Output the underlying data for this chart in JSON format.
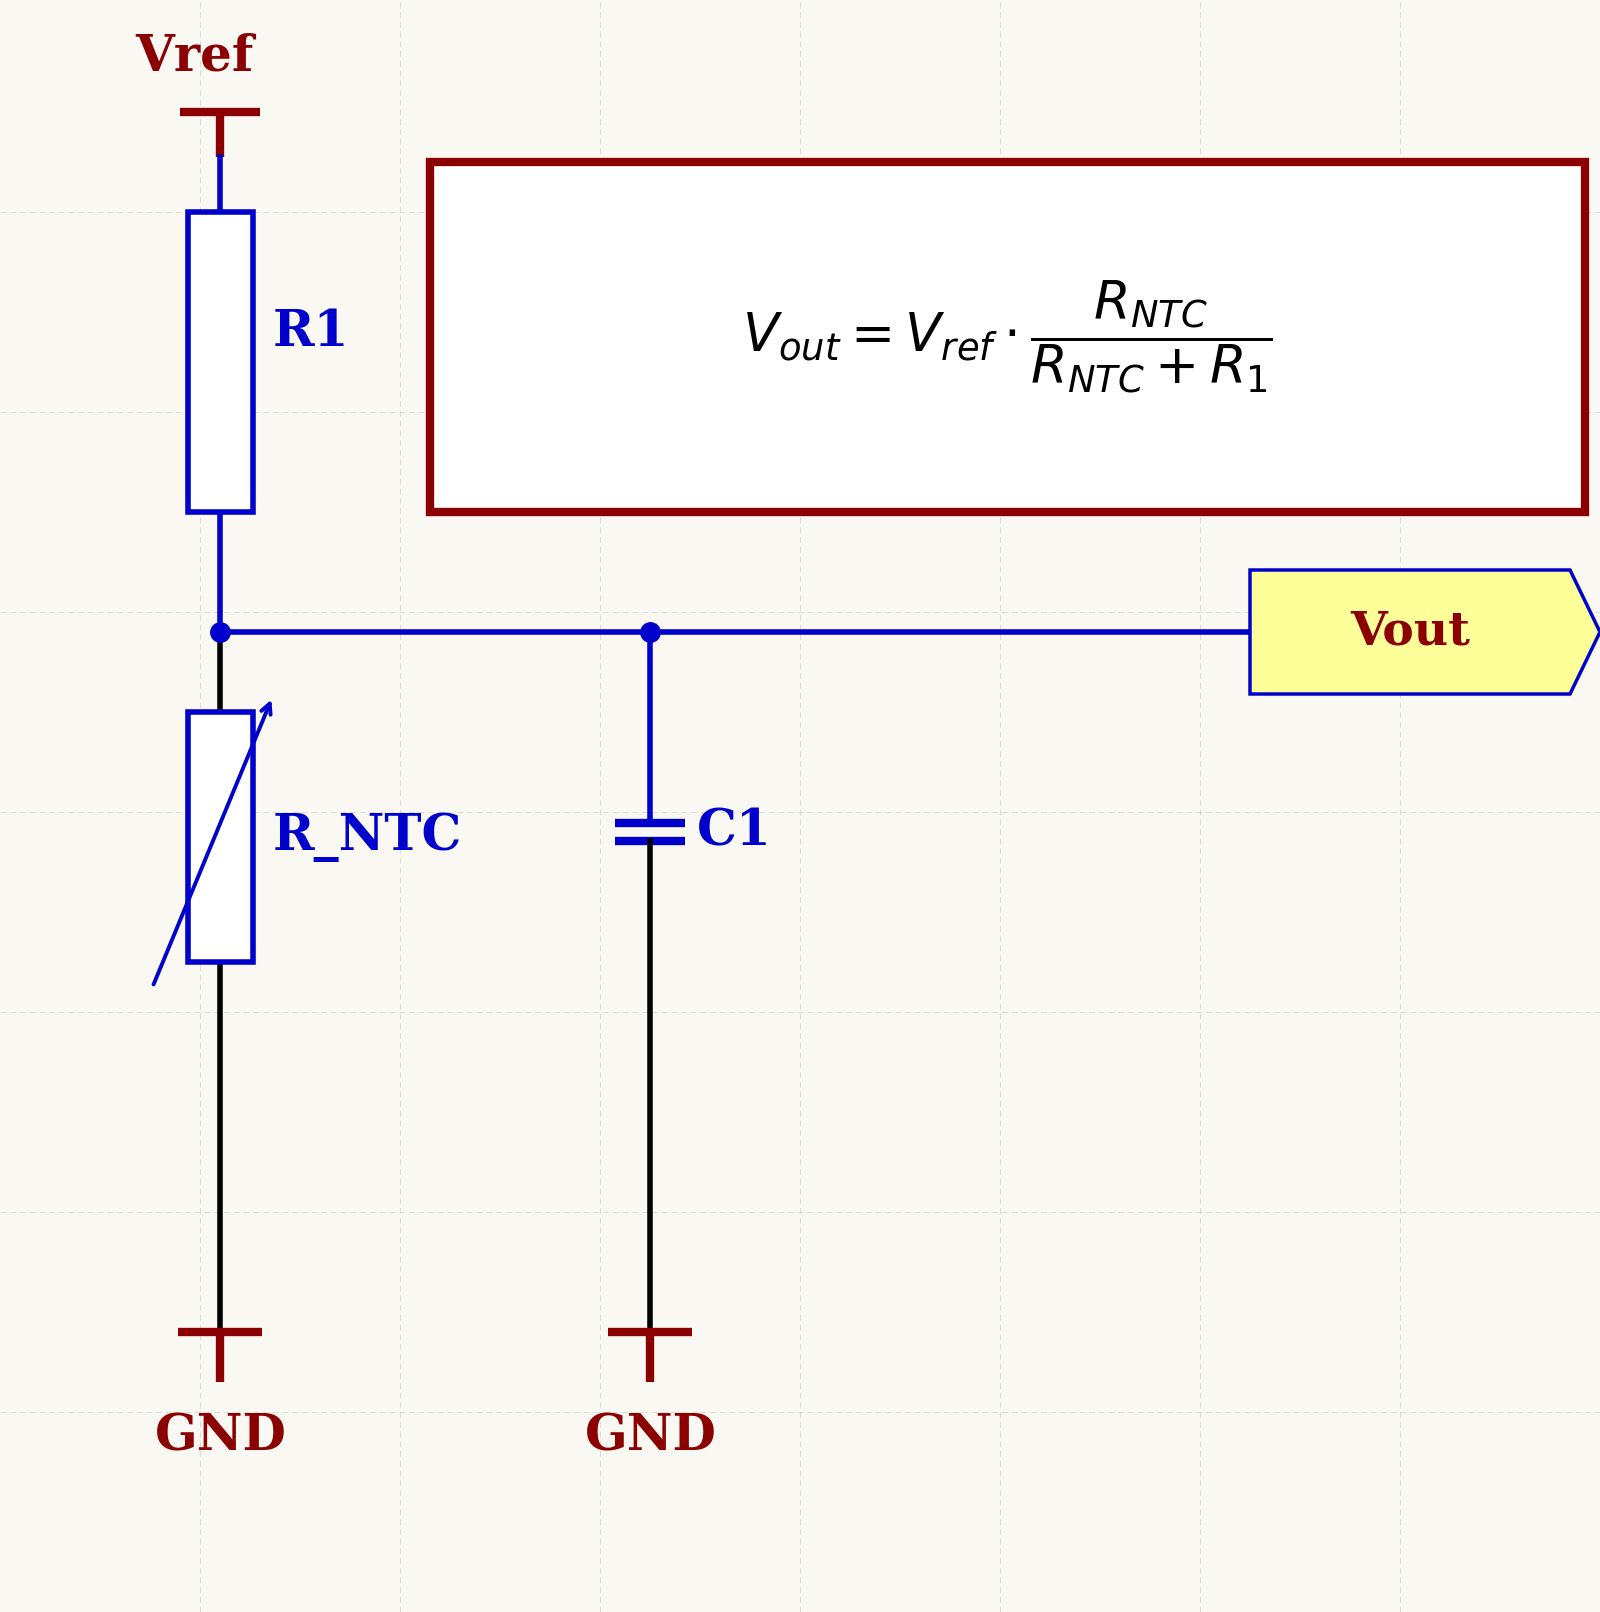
{
  "bg_color": "#faf8f2",
  "grid_color": "#c8c8c0",
  "wire_color_blue": "#0000cc",
  "wire_color_black": "#000000",
  "wire_color_dark_red": "#8b0000",
  "vref_label": "Vref",
  "gnd_label": "GND",
  "r1_label": "R1",
  "rntc_label": "R_NTC",
  "c1_label": "C1",
  "vout_label": "Vout",
  "label_fontsize": 36,
  "formula_fontsize": 38,
  "vout_fontsize": 34,
  "figsize": [
    16.0,
    16.12
  ],
  "dpi": 100,
  "xlim": [
    0,
    16
  ],
  "ylim": [
    0,
    16.12
  ]
}
